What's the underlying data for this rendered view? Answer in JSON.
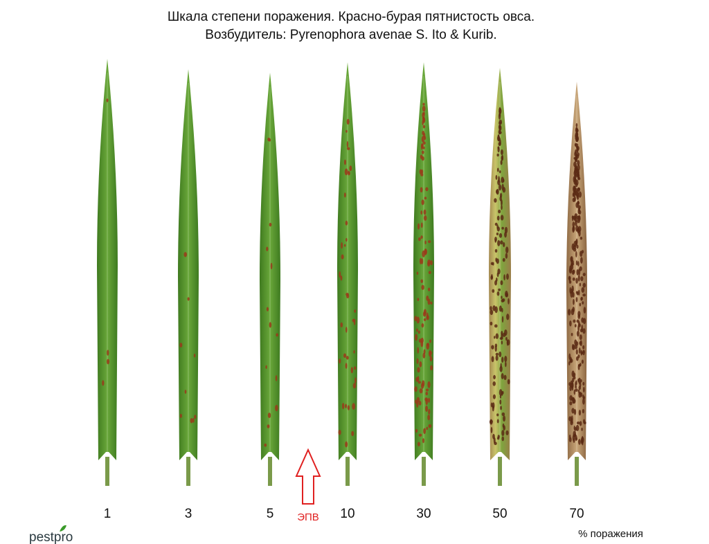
{
  "header": {
    "title_line1": "Шкала степени поражения. Красно-бурая пятнистость овса.",
    "title_line2": "Возбудитель: Pyrenophora avenae S. Ito & Kurib."
  },
  "scale": {
    "levels": [
      1,
      3,
      5,
      10,
      30,
      50,
      70
    ],
    "unit_label": "% поражения"
  },
  "threshold": {
    "label": "ЭПВ"
  },
  "logo": "pestpro"
}
